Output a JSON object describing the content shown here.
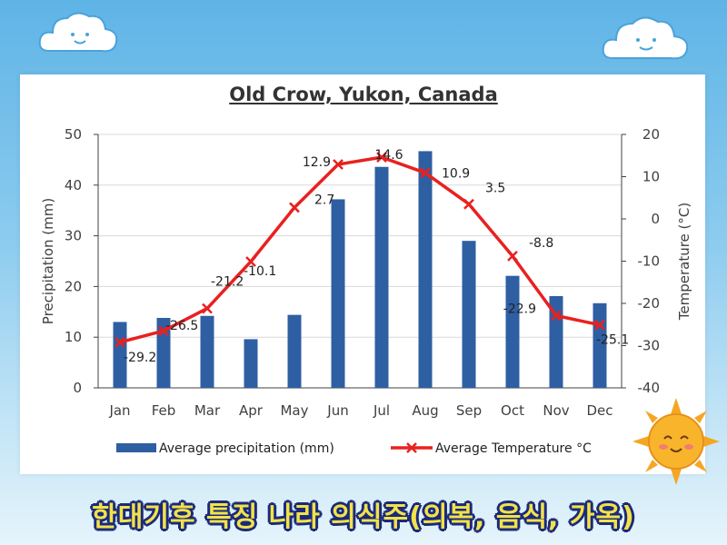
{
  "chart_data": {
    "type": "bar+line",
    "title": "Old Crow, Yukon, Canada",
    "categories": [
      "Jan",
      "Feb",
      "Mar",
      "Apr",
      "May",
      "Jun",
      "Jul",
      "Aug",
      "Sep",
      "Oct",
      "Nov",
      "Dec"
    ],
    "series": [
      {
        "name": "Average precipitation (mm)",
        "kind": "bar",
        "axis": "left",
        "color": "#2e5fa3",
        "values": [
          13.0,
          13.8,
          14.2,
          9.6,
          14.4,
          37.2,
          43.6,
          46.7,
          29.0,
          22.1,
          18.1,
          16.7
        ]
      },
      {
        "name": "Average Temperature °C",
        "kind": "line",
        "axis": "right",
        "color": "#e8211f",
        "marker": "x",
        "values": [
          -29.2,
          -26.5,
          -21.2,
          -10.1,
          2.7,
          12.9,
          14.6,
          10.9,
          3.5,
          -8.8,
          -22.9,
          -25.1
        ],
        "labels": [
          "-29.2",
          "-26.5",
          "-21.2",
          "-10.1",
          "2.7",
          "12.9",
          "14.6",
          "10.9",
          "3.5",
          "-8.8",
          "-22.9",
          "-25.1"
        ]
      }
    ],
    "ylabel": "Precipitation (mm)",
    "y2label": "Temperature (°C)",
    "ylim": [
      0,
      50
    ],
    "y2lim": [
      -40,
      20
    ],
    "yticks": [
      "0",
      "10",
      "20",
      "30",
      "40",
      "50"
    ],
    "y2ticks": [
      "-40",
      "-30",
      "-20",
      "-10",
      "0",
      "10",
      "20"
    ],
    "grid": true,
    "legend_position": "bottom"
  },
  "caption": "한대기후 특징 나라 의식주(의복, 음식, 가옥)"
}
